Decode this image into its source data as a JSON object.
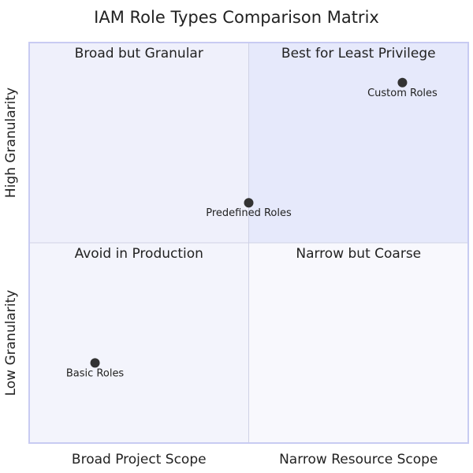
{
  "chart_data": {
    "type": "scatter",
    "title": "IAM Role Types Comparison Matrix",
    "x_axis_labels": [
      "Broad Project Scope",
      "Narrow Resource Scope"
    ],
    "y_axis_labels": [
      "Low Granularity",
      "High Granularity"
    ],
    "xlim": [
      0,
      1
    ],
    "ylim": [
      0,
      1
    ],
    "quadrants": [
      {
        "label": "Best for Least Privilege",
        "position": "top-right",
        "color": "#e6e9fb"
      },
      {
        "label": "Broad but Granular",
        "position": "top-left",
        "color": "#eff0fb"
      },
      {
        "label": "Avoid in Production",
        "position": "bottom-left",
        "color": "#f3f4fc"
      },
      {
        "label": "Narrow but Coarse",
        "position": "bottom-right",
        "color": "#f8f8fd"
      }
    ],
    "points": [
      {
        "label": "Custom Roles",
        "x": 0.85,
        "y": 0.9
      },
      {
        "label": "Predefined Roles",
        "x": 0.5,
        "y": 0.6
      },
      {
        "label": "Basic Roles",
        "x": 0.15,
        "y": 0.2
      }
    ],
    "point_color": "#333333",
    "border_color": "#c8cbf2",
    "divider_color": "#d0d2e6"
  }
}
